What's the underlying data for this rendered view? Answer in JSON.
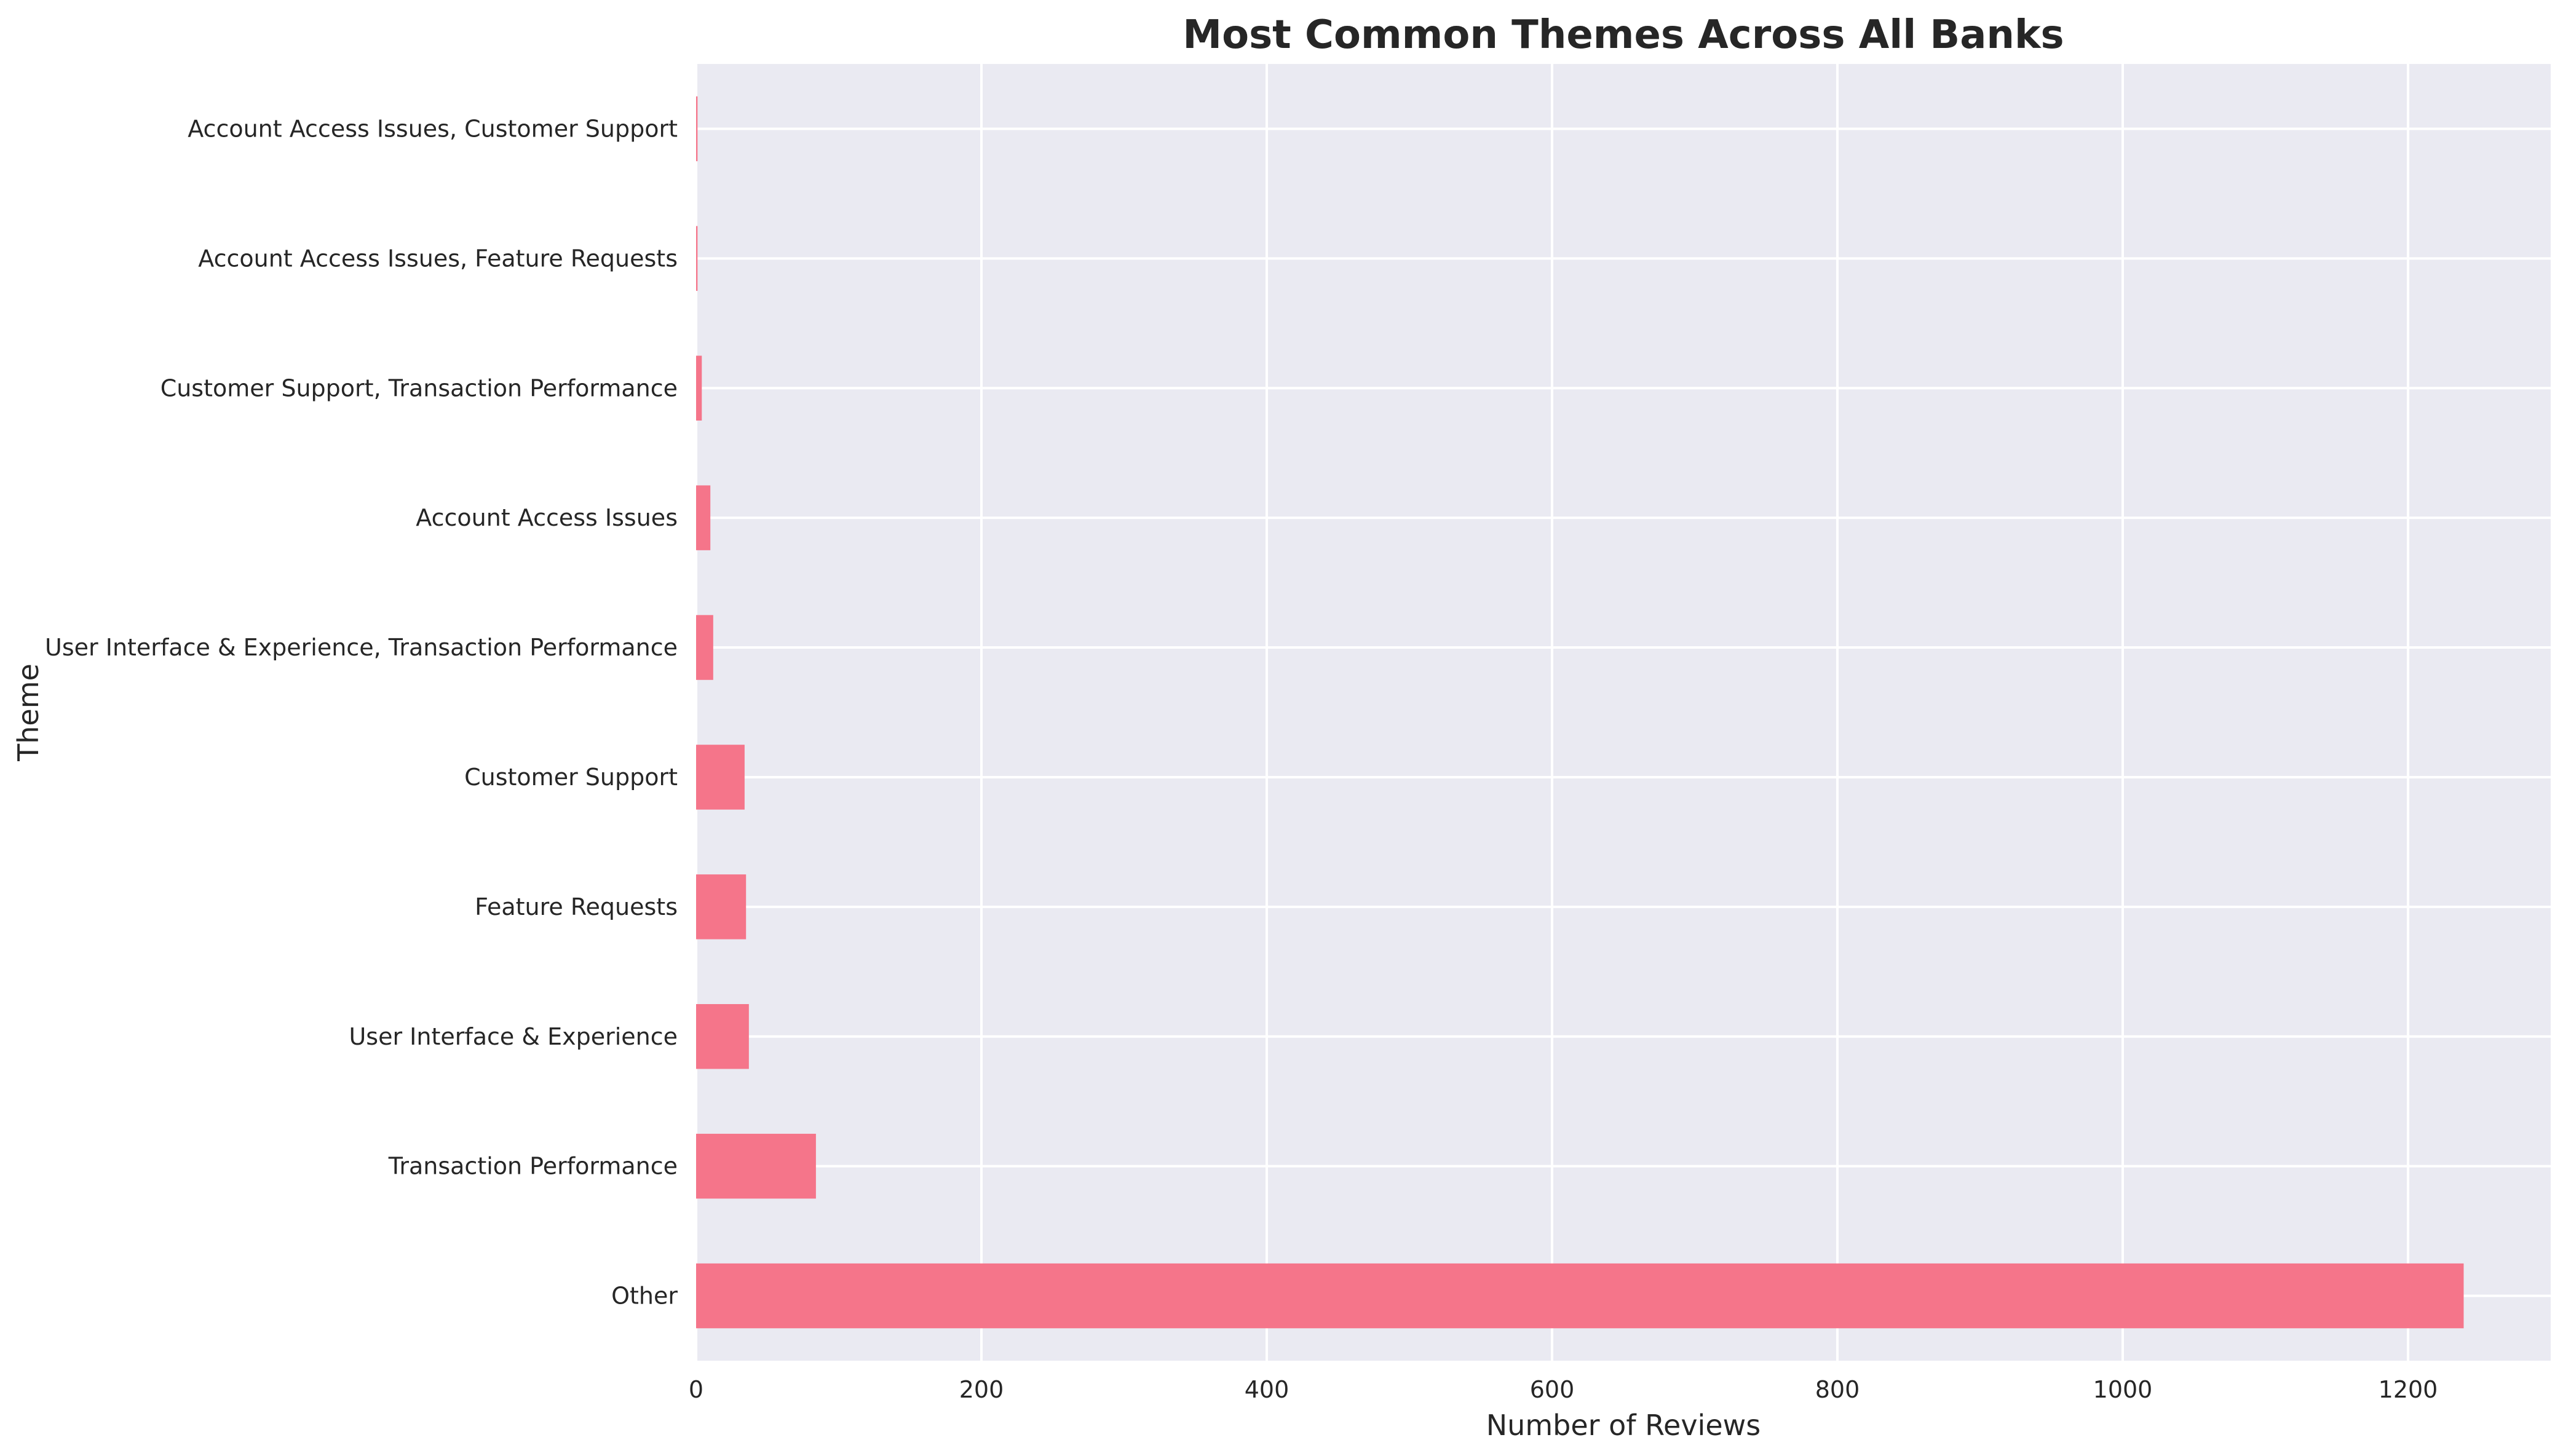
{
  "colors": {
    "bar": "#f5758a",
    "plot_background": "#eaeaf2",
    "grid": "#ffffff",
    "text": "#262626",
    "page_background": "#ffffff"
  },
  "chart_data": {
    "type": "bar",
    "orientation": "horizontal",
    "title": "Most Common Themes Across All Banks",
    "xlabel": "Number of Reviews",
    "ylabel": "Theme",
    "xlim": [
      0,
      1300
    ],
    "xticks": [
      0,
      200,
      400,
      600,
      800,
      1000,
      1200
    ],
    "grid": true,
    "legend": "none",
    "categories": [
      "Other",
      "Transaction Performance",
      "User Interface & Experience",
      "Feature Requests",
      "Customer Support",
      "User Interface & Experience, Transaction Performance",
      "Account Access Issues",
      "Customer Support, Transaction Performance",
      "Account Access Issues, Feature Requests",
      "Account Access Issues, Customer Support"
    ],
    "values": [
      1239,
      84,
      37,
      35,
      34,
      12,
      10,
      4,
      1,
      1
    ]
  }
}
